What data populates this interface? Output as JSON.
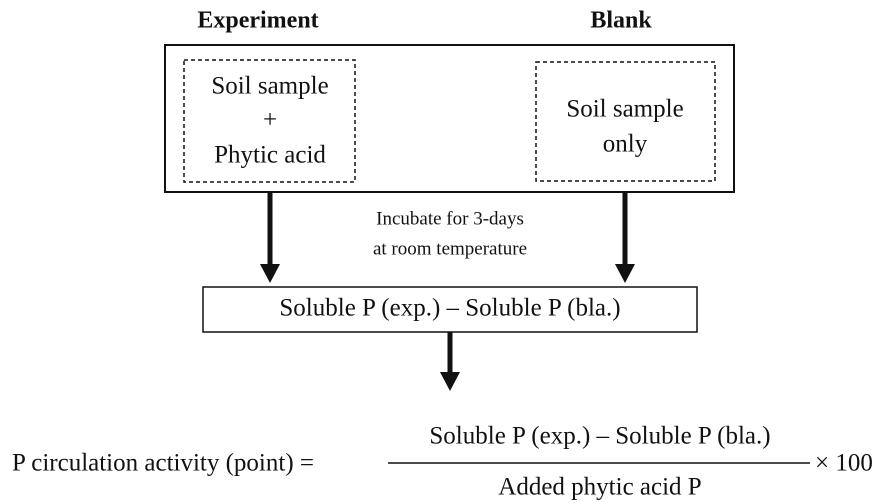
{
  "labels": {
    "experiment": "Experiment",
    "blank": "Blank"
  },
  "experiment_box": {
    "lines": [
      "Soil sample",
      "+",
      "Phytic acid"
    ]
  },
  "blank_box": {
    "lines": [
      "Soil sample",
      "only"
    ]
  },
  "incubation": {
    "lines": [
      "Incubate for 3-days",
      "at room temperature"
    ]
  },
  "difference_box": {
    "text": "Soluble P (exp.) – Soluble P (bla.)"
  },
  "formula": {
    "lhs": "P circulation activity (point) =",
    "numerator": "Soluble P (exp.) – Soluble P (bla.)",
    "denominator": "Added phytic acid P",
    "multiplier": "× 100"
  }
}
